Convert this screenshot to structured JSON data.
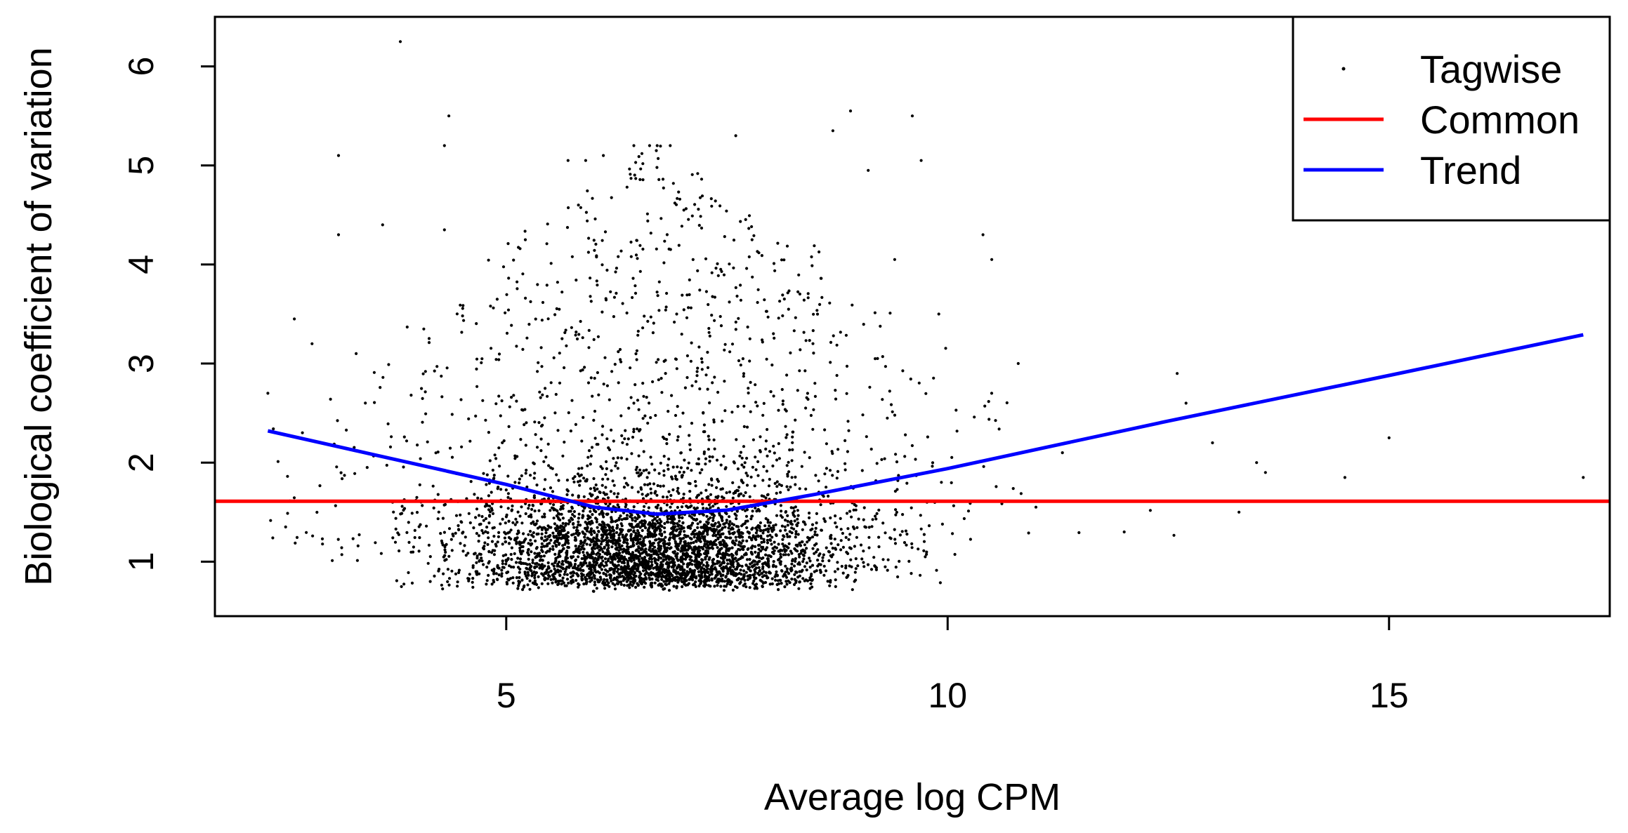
{
  "chart_data": {
    "type": "scatter",
    "xlabel": "Average log CPM",
    "ylabel": "Biological coefficient of variation",
    "xlim": [
      1.7,
      17.5
    ],
    "ylim": [
      0.45,
      6.5
    ],
    "x_ticks": [
      5,
      10,
      15
    ],
    "x_tick_labels": [
      "5",
      "10",
      "15"
    ],
    "y_ticks": [
      1,
      2,
      3,
      4,
      5,
      6
    ],
    "y_tick_labels": [
      "1",
      "2",
      "3",
      "4",
      "5",
      "6"
    ],
    "grid": false,
    "legend_position": "top-right",
    "legend": [
      {
        "label": "Tagwise",
        "symbol": "point",
        "color": "#000000"
      },
      {
        "label": "Common",
        "symbol": "line",
        "color": "#ff0000"
      },
      {
        "label": "Trend",
        "symbol": "line",
        "color": "#0000ff"
      }
    ],
    "series": [
      {
        "name": "Tagwise",
        "kind": "points",
        "color": "#000000",
        "points_estimated": [
          [
            3.8,
            6.25
          ],
          [
            4.35,
            5.5
          ],
          [
            8.9,
            5.55
          ],
          [
            9.6,
            5.5
          ],
          [
            7.6,
            5.3
          ],
          [
            4.3,
            5.2
          ],
          [
            3.1,
            5.1
          ],
          [
            5.7,
            5.05
          ],
          [
            5.9,
            5.05
          ],
          [
            6.1,
            5.1
          ],
          [
            6.7,
            5.15
          ],
          [
            8.7,
            5.35
          ],
          [
            9.1,
            4.95
          ],
          [
            9.7,
            5.05
          ],
          [
            10.4,
            4.3
          ],
          [
            10.5,
            4.05
          ],
          [
            9.4,
            4.05
          ],
          [
            3.1,
            4.3
          ],
          [
            3.6,
            4.4
          ],
          [
            4.3,
            4.35
          ],
          [
            2.6,
            3.45
          ],
          [
            2.8,
            3.2
          ],
          [
            3.3,
            3.1
          ],
          [
            9.9,
            3.5
          ],
          [
            10.8,
            3.0
          ],
          [
            11.3,
            2.1
          ],
          [
            12.6,
            2.9
          ],
          [
            12.7,
            2.6
          ],
          [
            13.0,
            2.2
          ],
          [
            13.5,
            2.0
          ],
          [
            13.6,
            1.9
          ],
          [
            14.5,
            1.85
          ],
          [
            15.0,
            2.25
          ],
          [
            17.2,
            1.85
          ],
          [
            12.0,
            1.3
          ],
          [
            13.3,
            1.5
          ],
          [
            2.3,
            2.7
          ],
          [
            11.0,
            1.55
          ]
        ],
        "cloud": {
          "n_points": 4500,
          "x_center": 6.7,
          "x_range": [
            2.3,
            17.2
          ],
          "y_range": [
            0.65,
            6.25
          ],
          "bulk_y_range": [
            0.7,
            2.0
          ]
        }
      },
      {
        "name": "Common",
        "kind": "hline",
        "color": "#ff0000",
        "y": 1.61
      },
      {
        "name": "Trend",
        "kind": "line",
        "color": "#0000ff",
        "x": [
          2.3,
          3.5,
          5.0,
          6.0,
          6.7,
          7.5,
          8.5,
          10.0,
          12.5,
          15.0,
          17.2
        ],
        "y": [
          2.32,
          2.08,
          1.78,
          1.55,
          1.48,
          1.52,
          1.68,
          1.94,
          2.42,
          2.88,
          3.29
        ]
      }
    ]
  }
}
